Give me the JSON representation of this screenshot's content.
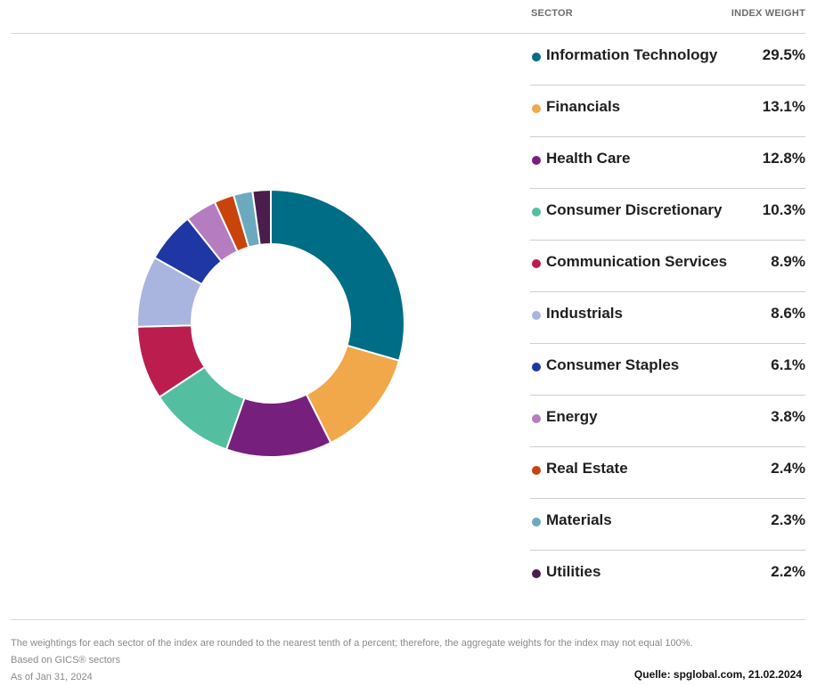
{
  "header": {
    "sector_label": "SECTOR",
    "weight_label": "INDEX WEIGHT"
  },
  "chart_data": {
    "type": "pie",
    "style": "donut",
    "series": [
      {
        "label": "Information Technology",
        "value": 29.5,
        "display": "29.5%",
        "color": "#006d87"
      },
      {
        "label": "Financials",
        "value": 13.1,
        "display": "13.1%",
        "color": "#f0a84b"
      },
      {
        "label": "Health Care",
        "value": 12.8,
        "display": "12.8%",
        "color": "#771f7c"
      },
      {
        "label": "Consumer Discretionary",
        "value": 10.3,
        "display": "10.3%",
        "color": "#54bfa0"
      },
      {
        "label": "Communication Services",
        "value": 8.9,
        "display": "8.9%",
        "color": "#bb1e4e"
      },
      {
        "label": "Industrials",
        "value": 8.6,
        "display": "8.6%",
        "color": "#a9b4df"
      },
      {
        "label": "Consumer Staples",
        "value": 6.1,
        "display": "6.1%",
        "color": "#1e37a4"
      },
      {
        "label": "Energy",
        "value": 3.8,
        "display": "3.8%",
        "color": "#b57dc0"
      },
      {
        "label": "Real Estate",
        "value": 2.4,
        "display": "2.4%",
        "color": "#c8440a"
      },
      {
        "label": "Materials",
        "value": 2.3,
        "display": "2.3%",
        "color": "#6ca9bf"
      },
      {
        "label": "Utilities",
        "value": 2.2,
        "display": "2.2%",
        "color": "#4a1d4d"
      }
    ]
  },
  "footer": {
    "note": "The weightings for each sector of the index are rounded to the nearest tenth of a percent; therefore, the aggregate weights for the index may not equal 100%.",
    "basis": "Based on GICS® sectors",
    "as_of": "As of Jan 31, 2024",
    "source": "Quelle: spglobal.com, 21.02.2024"
  }
}
